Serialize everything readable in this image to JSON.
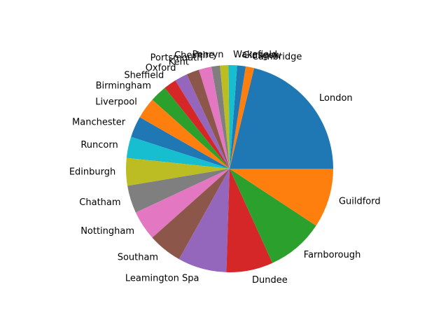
{
  "chart_data": {
    "type": "pie",
    "title": "",
    "start_angle_deg": 0,
    "direction": "counterclockwise",
    "legend": "none",
    "slices": [
      {
        "label": "London",
        "value": 64,
        "color": "#1f77b4"
      },
      {
        "label": "Cambridge",
        "value": 4,
        "color": "#ff7f0e"
      },
      {
        "label": "Glasgow",
        "value": 4,
        "color": "#1f77b4"
      },
      {
        "label": "Wakefield",
        "value": 4,
        "color": "#17becf"
      },
      {
        "label": "Penryn",
        "value": 4,
        "color": "#bcbd22"
      },
      {
        "label": "Cheshire",
        "value": 4,
        "color": "#7f7f7f"
      },
      {
        "label": "Portsmouth",
        "value": 6,
        "color": "#e377c2"
      },
      {
        "label": "Kent",
        "value": 6,
        "color": "#8c564b"
      },
      {
        "label": "Oxford",
        "value": 6,
        "color": "#9467bd"
      },
      {
        "label": "Sheffield",
        "value": 6,
        "color": "#d62728"
      },
      {
        "label": "Birmingham",
        "value": 8,
        "color": "#2ca02c"
      },
      {
        "label": "Liverpool",
        "value": 10,
        "color": "#ff7f0e"
      },
      {
        "label": "Manchester",
        "value": 10,
        "color": "#1f77b4"
      },
      {
        "label": "Runcorn",
        "value": 10,
        "color": "#17becf"
      },
      {
        "label": "Edinburgh",
        "value": 13,
        "color": "#bcbd22"
      },
      {
        "label": "Chatham",
        "value": 13,
        "color": "#7f7f7f"
      },
      {
        "label": "Nottingham",
        "value": 14,
        "color": "#e377c2"
      },
      {
        "label": "Southam",
        "value": 16,
        "color": "#8c564b"
      },
      {
        "label": "Leamington Spa",
        "value": 23,
        "color": "#9467bd"
      },
      {
        "label": "Dundee",
        "value": 22,
        "color": "#d62728"
      },
      {
        "label": "Farnborough",
        "value": 27,
        "color": "#2ca02c"
      },
      {
        "label": "Guildford",
        "value": 28,
        "color": "#ff7f0e"
      }
    ]
  }
}
